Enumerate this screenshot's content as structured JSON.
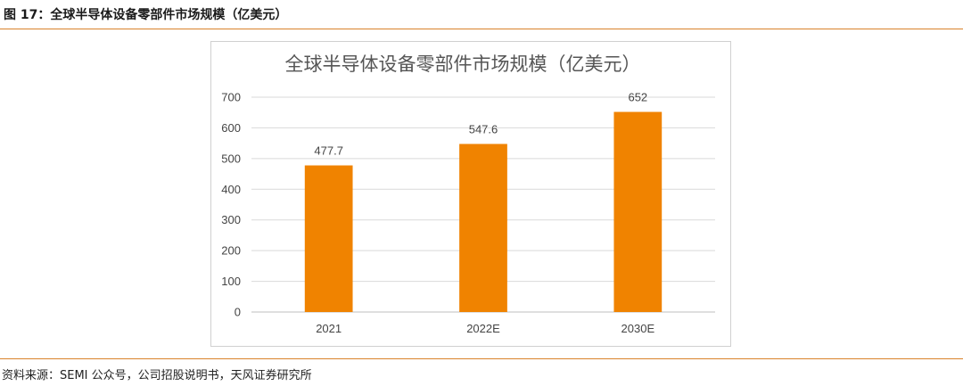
{
  "figure": {
    "title": "图 17：全球半导体设备零部件市场规模（亿美元）",
    "source": "资料来源：SEMI 公众号，公司招股说明书，天风证券研究所",
    "accent_color": "#d9822b"
  },
  "chart_data": {
    "type": "bar",
    "title": "全球半导体设备零部件市场规模（亿美元）",
    "categories": [
      "2021",
      "2022E",
      "2030E"
    ],
    "values": [
      477.7,
      547.6,
      652
    ],
    "value_labels": [
      "477.7",
      "547.6",
      "652"
    ],
    "ylim": [
      0,
      700
    ],
    "yticks": [
      0,
      100,
      200,
      300,
      400,
      500,
      600,
      700
    ],
    "grid": true,
    "bar_color": "#f08300",
    "xlabel": "",
    "ylabel": ""
  }
}
